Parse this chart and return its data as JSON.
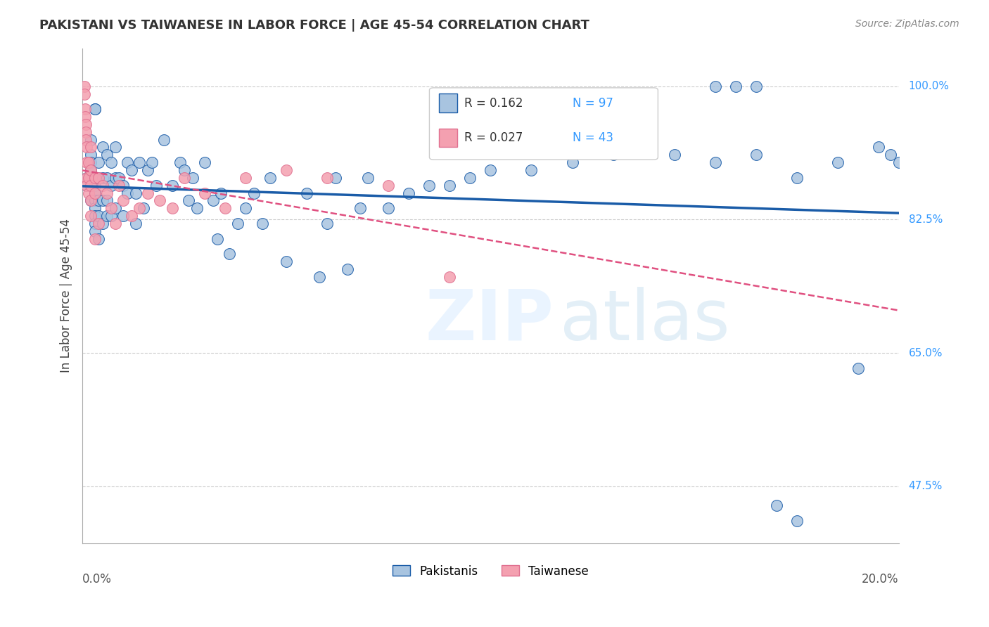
{
  "title": "PAKISTANI VS TAIWANESE IN LABOR FORCE | AGE 45-54 CORRELATION CHART",
  "source": "Source: ZipAtlas.com",
  "ylabel": "In Labor Force | Age 45-54",
  "yticks": [
    47.5,
    65.0,
    82.5,
    100.0
  ],
  "ytick_labels": [
    "47.5%",
    "65.0%",
    "82.5%",
    "100.0%"
  ],
  "xmin": 0.0,
  "xmax": 0.2,
  "ymin": 0.4,
  "ymax": 1.05,
  "legend_r1": "R = 0.162",
  "legend_n1": "N = 97",
  "legend_r2": "R = 0.027",
  "legend_n2": "N = 43",
  "color_pakistani": "#a8c4e0",
  "color_taiwanese": "#f4a0b0",
  "color_line_pakistani": "#1a5ca8",
  "color_line_taiwanese": "#e05080",
  "pakistani_x": [
    0.001,
    0.001,
    0.002,
    0.002,
    0.002,
    0.002,
    0.002,
    0.003,
    0.003,
    0.003,
    0.003,
    0.003,
    0.003,
    0.003,
    0.003,
    0.004,
    0.004,
    0.004,
    0.004,
    0.004,
    0.005,
    0.005,
    0.005,
    0.005,
    0.006,
    0.006,
    0.006,
    0.006,
    0.007,
    0.007,
    0.007,
    0.008,
    0.008,
    0.008,
    0.009,
    0.01,
    0.01,
    0.011,
    0.011,
    0.012,
    0.013,
    0.013,
    0.014,
    0.015,
    0.016,
    0.017,
    0.018,
    0.02,
    0.022,
    0.024,
    0.025,
    0.026,
    0.027,
    0.028,
    0.03,
    0.032,
    0.033,
    0.034,
    0.036,
    0.038,
    0.04,
    0.042,
    0.044,
    0.046,
    0.05,
    0.055,
    0.058,
    0.06,
    0.062,
    0.065,
    0.068,
    0.07,
    0.075,
    0.08,
    0.085,
    0.09,
    0.095,
    0.1,
    0.11,
    0.12,
    0.13,
    0.145,
    0.155,
    0.165,
    0.175,
    0.185,
    0.19,
    0.195,
    0.198,
    0.2,
    0.17,
    0.175,
    0.155,
    0.16,
    0.165,
    0.003,
    0.003
  ],
  "pakistani_y": [
    0.88,
    0.87,
    0.93,
    0.91,
    0.9,
    0.89,
    0.85,
    0.88,
    0.87,
    0.86,
    0.85,
    0.84,
    0.83,
    0.82,
    0.81,
    0.9,
    0.88,
    0.85,
    0.83,
    0.8,
    0.92,
    0.88,
    0.85,
    0.82,
    0.91,
    0.88,
    0.85,
    0.83,
    0.9,
    0.87,
    0.83,
    0.92,
    0.88,
    0.84,
    0.88,
    0.87,
    0.83,
    0.9,
    0.86,
    0.89,
    0.86,
    0.82,
    0.9,
    0.84,
    0.89,
    0.9,
    0.87,
    0.93,
    0.87,
    0.9,
    0.89,
    0.85,
    0.88,
    0.84,
    0.9,
    0.85,
    0.8,
    0.86,
    0.78,
    0.82,
    0.84,
    0.86,
    0.82,
    0.88,
    0.77,
    0.86,
    0.75,
    0.82,
    0.88,
    0.76,
    0.84,
    0.88,
    0.84,
    0.86,
    0.87,
    0.87,
    0.88,
    0.89,
    0.89,
    0.9,
    0.91,
    0.91,
    0.9,
    0.91,
    0.88,
    0.9,
    0.63,
    0.92,
    0.91,
    0.9,
    0.45,
    0.43,
    1.0,
    1.0,
    1.0,
    0.97,
    0.97
  ],
  "taiwanese_x": [
    0.0005,
    0.0005,
    0.0006,
    0.0007,
    0.0008,
    0.0008,
    0.0009,
    0.001,
    0.001,
    0.001,
    0.001,
    0.0015,
    0.0015,
    0.0015,
    0.002,
    0.002,
    0.002,
    0.002,
    0.002,
    0.003,
    0.003,
    0.003,
    0.004,
    0.004,
    0.005,
    0.006,
    0.007,
    0.008,
    0.009,
    0.01,
    0.012,
    0.014,
    0.016,
    0.019,
    0.022,
    0.025,
    0.03,
    0.035,
    0.04,
    0.05,
    0.06,
    0.075,
    0.09
  ],
  "taiwanese_y": [
    1.0,
    0.99,
    0.97,
    0.96,
    0.95,
    0.94,
    0.93,
    0.92,
    0.9,
    0.88,
    0.87,
    0.9,
    0.88,
    0.86,
    0.92,
    0.89,
    0.87,
    0.85,
    0.83,
    0.88,
    0.86,
    0.8,
    0.88,
    0.82,
    0.87,
    0.86,
    0.84,
    0.82,
    0.87,
    0.85,
    0.83,
    0.84,
    0.86,
    0.85,
    0.84,
    0.88,
    0.86,
    0.84,
    0.88,
    0.89,
    0.88,
    0.87,
    0.75
  ]
}
